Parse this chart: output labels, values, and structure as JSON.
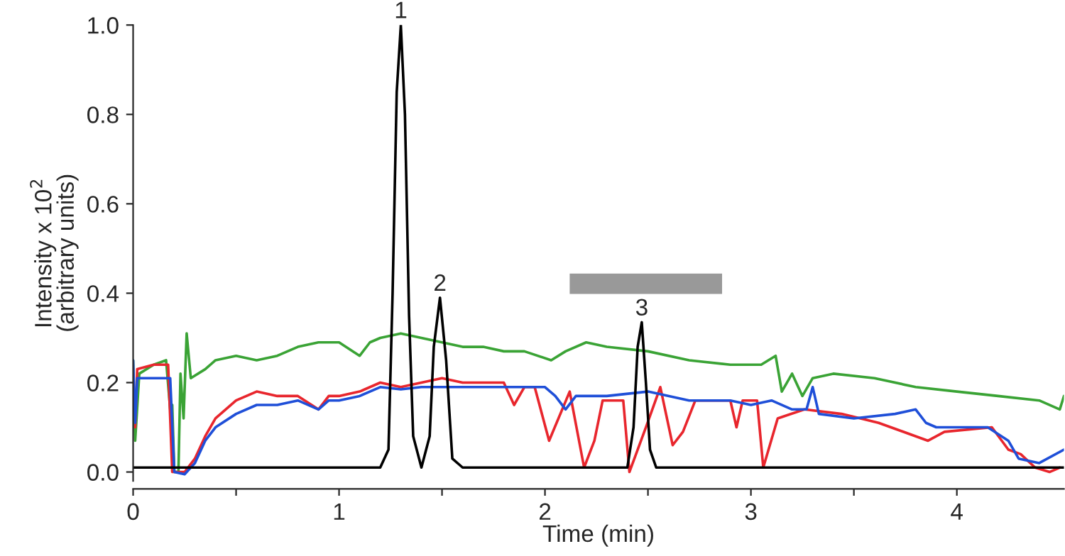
{
  "chart_data": {
    "type": "line",
    "xlabel": "Time (min)",
    "ylabel": "Intensity x 10$^{2}$\n(arbitrary units)",
    "xlim": [
      0,
      4.52
    ],
    "ylim": [
      -0.02,
      1.0
    ],
    "xticks": [
      0,
      {
        "value": 0.5,
        "label": null
      },
      1,
      {
        "value": 1.5,
        "label": null
      },
      2,
      {
        "value": 2.5,
        "label": null
      },
      3,
      {
        "value": 3.5,
        "label": null
      },
      4
    ],
    "yticks": [
      {
        "value": 0,
        "label": "0.0"
      },
      {
        "value": 0.2,
        "label": "0.2"
      },
      {
        "value": 0.4,
        "label": "0.4"
      },
      {
        "value": 0.6,
        "label": "0.6"
      },
      {
        "value": 0.8,
        "label": "0.8"
      },
      {
        "value": 1.0,
        "label": "1.0"
      }
    ],
    "grid": false,
    "legend": false,
    "bands": [
      {
        "axis": "x",
        "from": 2.12,
        "to": 2.86,
        "color": "#999999"
      }
    ],
    "annotations": [
      {
        "text": "1",
        "x": 1.3,
        "y": 1.0
      },
      {
        "text": "2",
        "x": 1.49,
        "y": 0.39
      },
      {
        "text": "3",
        "x": 2.47,
        "y": 0.335
      }
    ],
    "series": [
      {
        "color": "#3aa335",
        "x": [
          0,
          0.01,
          0.03,
          0.1,
          0.16,
          0.18,
          0.19,
          0.2,
          0.22,
          0.23,
          0.245,
          0.26,
          0.28,
          0.35,
          0.4,
          0.5,
          0.6,
          0.7,
          0.8,
          0.9,
          1.0,
          1.1,
          1.15,
          1.2,
          1.3,
          1.4,
          1.5,
          1.6,
          1.7,
          1.8,
          1.9,
          2.03,
          2.1,
          2.2,
          2.3,
          2.5,
          2.7,
          2.9,
          3.05,
          3.12,
          3.15,
          3.2,
          3.25,
          3.3,
          3.4,
          3.6,
          3.8,
          4.0,
          4.2,
          4.4,
          4.5,
          4.52
        ],
        "values": [
          0.25,
          0.07,
          0.22,
          0.24,
          0.25,
          0.14,
          0.15,
          0.0,
          0.0,
          0.22,
          0.12,
          0.31,
          0.21,
          0.23,
          0.25,
          0.26,
          0.25,
          0.26,
          0.28,
          0.29,
          0.29,
          0.26,
          0.29,
          0.3,
          0.31,
          0.3,
          0.29,
          0.28,
          0.28,
          0.27,
          0.27,
          0.25,
          0.27,
          0.29,
          0.28,
          0.27,
          0.25,
          0.24,
          0.24,
          0.26,
          0.18,
          0.22,
          0.17,
          0.21,
          0.22,
          0.21,
          0.19,
          0.18,
          0.17,
          0.16,
          0.14,
          0.17
        ]
      },
      {
        "color": "#e8262d",
        "x": [
          0.01,
          0.02,
          0.1,
          0.17,
          0.19,
          0.25,
          0.3,
          0.35,
          0.4,
          0.5,
          0.6,
          0.7,
          0.8,
          0.9,
          0.95,
          1.0,
          1.1,
          1.2,
          1.3,
          1.4,
          1.5,
          1.6,
          1.7,
          1.8,
          1.85,
          1.9,
          1.95,
          2.02,
          2.12,
          2.19,
          2.24,
          2.28,
          2.38,
          2.41,
          2.49,
          2.56,
          2.62,
          2.67,
          2.73,
          2.9,
          2.93,
          2.96,
          3.03,
          3.06,
          3.13,
          3.26,
          3.44,
          3.62,
          3.86,
          3.94,
          4.17,
          4.25,
          4.31,
          4.38,
          4.45,
          4.5
        ],
        "values": [
          0.1,
          0.23,
          0.24,
          0.24,
          0.0,
          0.0,
          0.03,
          0.08,
          0.12,
          0.16,
          0.18,
          0.17,
          0.17,
          0.14,
          0.17,
          0.17,
          0.18,
          0.2,
          0.19,
          0.2,
          0.21,
          0.2,
          0.2,
          0.2,
          0.15,
          0.19,
          0.19,
          0.07,
          0.18,
          0.01,
          0.07,
          0.16,
          0.16,
          0.0,
          0.1,
          0.19,
          0.06,
          0.09,
          0.16,
          0.16,
          0.1,
          0.16,
          0.16,
          0.01,
          0.12,
          0.14,
          0.13,
          0.11,
          0.07,
          0.09,
          0.1,
          0.05,
          0.04,
          0.01,
          0.0,
          0.01
        ]
      },
      {
        "color": "#1f4fd8",
        "x": [
          0,
          0.01,
          0.02,
          0.15,
          0.18,
          0.2,
          0.25,
          0.3,
          0.35,
          0.4,
          0.5,
          0.6,
          0.7,
          0.8,
          0.9,
          0.95,
          1.0,
          1.1,
          1.2,
          1.3,
          1.4,
          1.5,
          1.6,
          1.7,
          1.8,
          1.9,
          2.0,
          2.05,
          2.1,
          2.15,
          2.3,
          2.5,
          2.7,
          2.9,
          3.0,
          3.1,
          3.2,
          3.27,
          3.3,
          3.33,
          3.5,
          3.7,
          3.8,
          3.85,
          3.9,
          4.0,
          4.15,
          4.25,
          4.3,
          4.4,
          4.52
        ],
        "values": [
          0.25,
          0.11,
          0.21,
          0.21,
          0.21,
          0.0,
          -0.005,
          0.02,
          0.07,
          0.1,
          0.13,
          0.15,
          0.15,
          0.16,
          0.14,
          0.16,
          0.16,
          0.17,
          0.19,
          0.185,
          0.19,
          0.19,
          0.19,
          0.19,
          0.19,
          0.19,
          0.19,
          0.17,
          0.14,
          0.17,
          0.17,
          0.18,
          0.16,
          0.16,
          0.15,
          0.16,
          0.14,
          0.14,
          0.19,
          0.13,
          0.12,
          0.13,
          0.14,
          0.11,
          0.1,
          0.1,
          0.1,
          0.07,
          0.03,
          0.02,
          0.05
        ]
      },
      {
        "color": "#000000",
        "x": [
          0,
          1.2,
          1.24,
          1.26,
          1.28,
          1.3,
          1.32,
          1.34,
          1.36,
          1.4,
          1.44,
          1.46,
          1.49,
          1.52,
          1.55,
          1.6,
          2.4,
          2.43,
          2.45,
          2.47,
          2.49,
          2.51,
          2.54,
          4.52
        ],
        "values": [
          0.01,
          0.01,
          0.05,
          0.4,
          0.85,
          1.0,
          0.8,
          0.35,
          0.08,
          0.01,
          0.08,
          0.28,
          0.39,
          0.25,
          0.03,
          0.01,
          0.01,
          0.1,
          0.28,
          0.335,
          0.2,
          0.05,
          0.01,
          0.01
        ]
      }
    ]
  }
}
